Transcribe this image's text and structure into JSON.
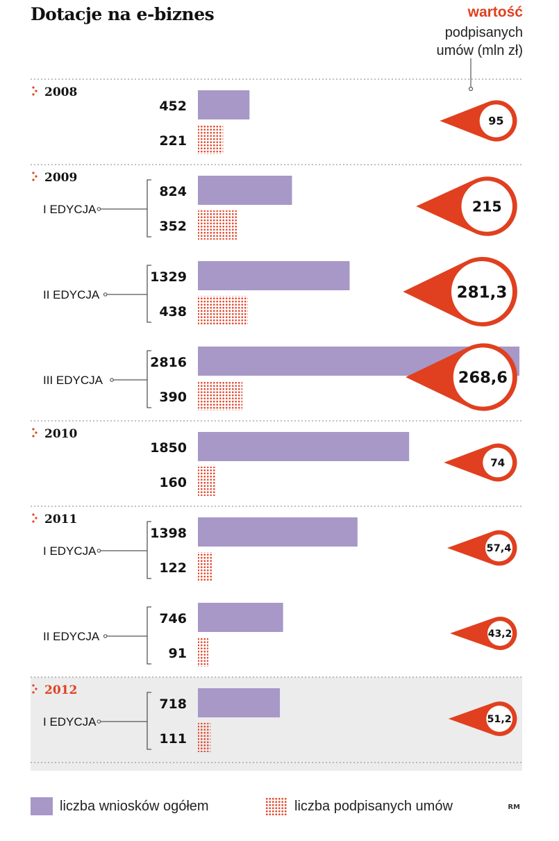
{
  "title": "Dotacje na e-biznes",
  "value_header": {
    "line1": "wartość",
    "line2": "podpisanych",
    "line3": "umów (mln zł)"
  },
  "credit": "RM",
  "colors": {
    "applications": "#a798c7",
    "contracts": "#e24a30",
    "accent": "#e0401f",
    "highlight_bg": "#ececec"
  },
  "chart_data": {
    "type": "bar",
    "orientation": "horizontal",
    "groups": [
      {
        "year": "2008",
        "highlight": false,
        "entries": [
          {
            "edition": "",
            "applications": 452,
            "contracts": 221,
            "value": "95"
          }
        ]
      },
      {
        "year": "2009",
        "highlight": false,
        "entries": [
          {
            "edition": "I EDYCJA",
            "applications": 824,
            "contracts": 352,
            "value": "215"
          },
          {
            "edition": "II EDYCJA",
            "applications": 1329,
            "contracts": 438,
            "value": "281,3"
          },
          {
            "edition": "III EDYCJA",
            "applications": 2816,
            "contracts": 390,
            "value": "268,6"
          }
        ]
      },
      {
        "year": "2010",
        "highlight": false,
        "entries": [
          {
            "edition": "",
            "applications": 1850,
            "contracts": 160,
            "value": "74"
          }
        ]
      },
      {
        "year": "2011",
        "highlight": false,
        "entries": [
          {
            "edition": "I EDYCJA",
            "applications": 1398,
            "contracts": 122,
            "value": "57,4"
          },
          {
            "edition": "II EDYCJA",
            "applications": 746,
            "contracts": 91,
            "value": "43,2"
          }
        ]
      },
      {
        "year": "2012",
        "highlight": true,
        "entries": [
          {
            "edition": "I EDYCJA",
            "applications": 718,
            "contracts": 111,
            "value": "51,2"
          }
        ]
      }
    ],
    "series": [
      {
        "name": "liczba wniosków ogółem"
      },
      {
        "name": "liczba podpisanych umów"
      }
    ]
  }
}
